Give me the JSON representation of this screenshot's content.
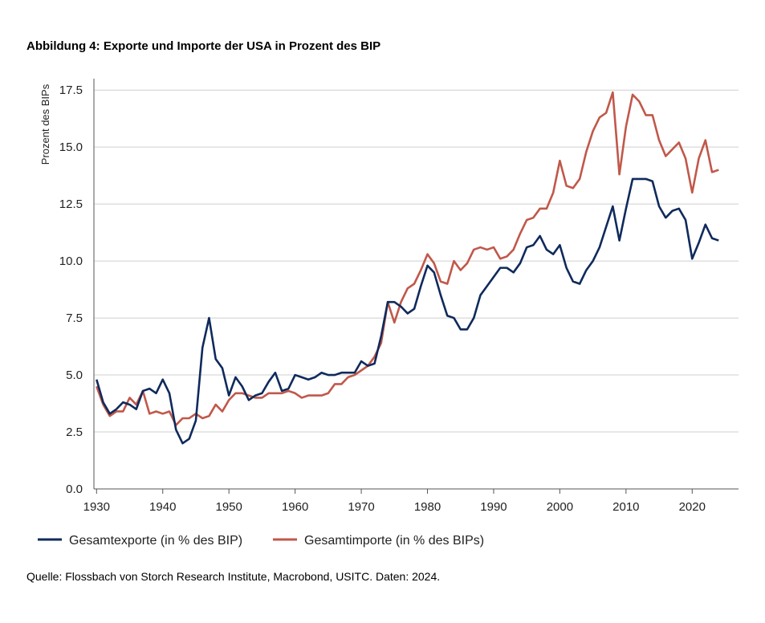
{
  "title": "Abbildung 4: Exporte und Importe der USA in Prozent des BIP",
  "source": "Quelle: Flossbach von Storch Research Institute, Macrobond, USITC. Daten: 2024.",
  "chart_data": {
    "type": "line",
    "title": "Abbildung 4: Exporte und Importe der USA in Prozent des BIP",
    "xlabel": "",
    "ylabel": "Prozent des BIPs",
    "xlim": [
      1929.6,
      2027
    ],
    "ylim": [
      0,
      18
    ],
    "xticks": [
      "1930",
      "1940",
      "1950",
      "1960",
      "1970",
      "1980",
      "1990",
      "2000",
      "2010",
      "2020"
    ],
    "yticks": [
      "0.0",
      "2.5",
      "5.0",
      "7.5",
      "10.0",
      "12.5",
      "15.0",
      "17.5"
    ],
    "grid": "horizontal",
    "legend_position": "bottom",
    "x": [
      1930,
      1931,
      1932,
      1933,
      1934,
      1935,
      1936,
      1937,
      1938,
      1939,
      1940,
      1941,
      1942,
      1943,
      1944,
      1945,
      1946,
      1947,
      1948,
      1949,
      1950,
      1951,
      1952,
      1953,
      1954,
      1955,
      1956,
      1957,
      1958,
      1959,
      1960,
      1961,
      1962,
      1963,
      1964,
      1965,
      1966,
      1967,
      1968,
      1969,
      1970,
      1971,
      1972,
      1973,
      1974,
      1975,
      1976,
      1977,
      1978,
      1979,
      1980,
      1981,
      1982,
      1983,
      1984,
      1985,
      1986,
      1987,
      1988,
      1989,
      1990,
      1991,
      1992,
      1993,
      1994,
      1995,
      1996,
      1997,
      1998,
      1999,
      2000,
      2001,
      2002,
      2003,
      2004,
      2005,
      2006,
      2007,
      2008,
      2009,
      2010,
      2011,
      2012,
      2013,
      2014,
      2015,
      2016,
      2017,
      2018,
      2019,
      2020,
      2021,
      2022,
      2023,
      2024
    ],
    "series": [
      {
        "name": "Gesamtexporte (in % des BIP)",
        "color": "#0f2a5c",
        "values": [
          4.8,
          3.8,
          3.3,
          3.5,
          3.8,
          3.7,
          3.5,
          4.3,
          4.4,
          4.2,
          4.8,
          4.2,
          2.6,
          2.0,
          2.2,
          3.0,
          6.2,
          7.5,
          5.7,
          5.3,
          4.1,
          4.9,
          4.5,
          3.9,
          4.1,
          4.2,
          4.7,
          5.1,
          4.3,
          4.4,
          5.0,
          4.9,
          4.8,
          4.9,
          5.1,
          5.0,
          5.0,
          5.1,
          5.1,
          5.1,
          5.6,
          5.4,
          5.5,
          6.7,
          8.2,
          8.2,
          8.0,
          7.7,
          7.9,
          8.9,
          9.8,
          9.5,
          8.5,
          7.6,
          7.5,
          7.0,
          7.0,
          7.5,
          8.5,
          8.9,
          9.3,
          9.7,
          9.7,
          9.5,
          9.9,
          10.6,
          10.7,
          11.1,
          10.5,
          10.3,
          10.7,
          9.7,
          9.1,
          9.0,
          9.6,
          10.0,
          10.6,
          11.5,
          12.4,
          10.9,
          12.3,
          13.6,
          13.6,
          13.6,
          13.5,
          12.4,
          11.9,
          12.2,
          12.3,
          11.8,
          10.1,
          10.8,
          11.6,
          11.0,
          10.9
        ]
      },
      {
        "name": "Gesamtimporte (in % des BIPs)",
        "color": "#c0584a",
        "values": [
          4.5,
          3.7,
          3.2,
          3.4,
          3.4,
          4.0,
          3.7,
          4.3,
          3.3,
          3.4,
          3.3,
          3.4,
          2.8,
          3.1,
          3.1,
          3.3,
          3.1,
          3.2,
          3.7,
          3.4,
          3.9,
          4.2,
          4.2,
          4.1,
          4.0,
          4.0,
          4.2,
          4.2,
          4.2,
          4.3,
          4.2,
          4.0,
          4.1,
          4.1,
          4.1,
          4.2,
          4.6,
          4.6,
          4.9,
          5.0,
          5.2,
          5.4,
          5.8,
          6.4,
          8.2,
          7.3,
          8.2,
          8.8,
          9.0,
          9.6,
          10.3,
          9.9,
          9.1,
          9.0,
          10.0,
          9.6,
          9.9,
          10.5,
          10.6,
          10.5,
          10.6,
          10.1,
          10.2,
          10.5,
          11.2,
          11.8,
          11.9,
          12.3,
          12.3,
          13.0,
          14.4,
          13.3,
          13.2,
          13.6,
          14.8,
          15.7,
          16.3,
          16.5,
          17.4,
          13.8,
          15.9,
          17.3,
          17.0,
          16.4,
          16.4,
          15.3,
          14.6,
          14.9,
          15.2,
          14.5,
          13.0,
          14.5,
          15.3,
          13.9,
          14.0
        ]
      }
    ]
  }
}
